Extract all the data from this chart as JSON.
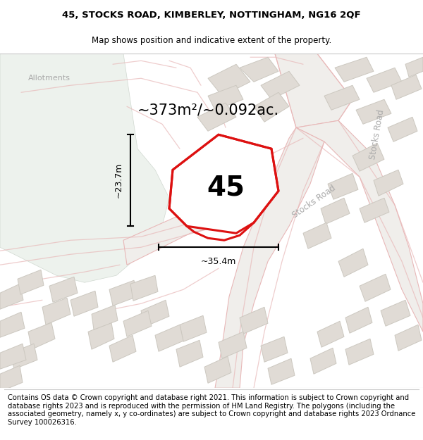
{
  "title_line1": "45, STOCKS ROAD, KIMBERLEY, NOTTINGHAM, NG16 2QF",
  "title_line2": "Map shows position and indicative extent of the property.",
  "area_text": "~373m²/~0.092ac.",
  "plot_number": "45",
  "dim_width": "~35.4m",
  "dim_height": "~23.7m",
  "footer_text": "Contains OS data © Crown copyright and database right 2021. This information is subject to Crown copyright and database rights 2023 and is reproduced with the permission of HM Land Registry. The polygons (including the associated geometry, namely x, y co-ordinates) are subject to Crown copyright and database rights 2023 Ordnance Survey 100026316.",
  "allotments_label": "Allotments",
  "stocks_road_label_v": "Stocks Road",
  "stocks_road_label_h": "Stocks Road",
  "map_bg": "#f7f7f5",
  "allotment_color": "#edf2ed",
  "road_fill": "#e8e5e0",
  "road_white": "#f0eeeb",
  "building_fill": "#e0dbd5",
  "building_edge": "#ccc8c0",
  "plot_edge_color": "#dd1111",
  "plot_fill_color": "#ffffff",
  "road_outline_color": "#e8b8b8",
  "title_fontsize": 9.5,
  "subtitle_fontsize": 8.5,
  "area_fontsize": 15,
  "plot_num_fontsize": 26,
  "footer_fontsize": 7.2,
  "road_label_color": "#aaaaaa",
  "allotment_label_color": "#aaaaaa"
}
